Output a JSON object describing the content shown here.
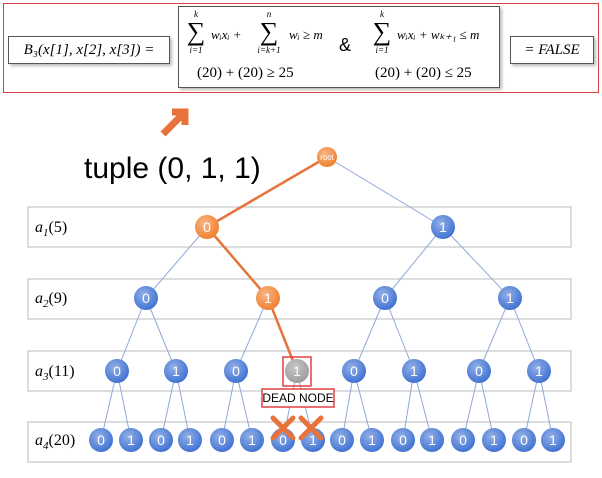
{
  "header": {
    "b3": "B₃(x[1], x[2], x[3]) =",
    "condition1": {
      "sums": [
        {
          "upper": "k",
          "lower": "i=1",
          "term": "wᵢxᵢ +"
        },
        {
          "upper": "n",
          "lower": "i=k+1",
          "term": "wᵢ ≥ m"
        }
      ],
      "check": "(20) + (20) ≥ 25"
    },
    "and": "&",
    "condition2": {
      "sums": [
        {
          "upper": "k",
          "lower": "i=1",
          "term": "wᵢxᵢ + wₖ₊₁ ≤ m"
        }
      ],
      "check": "(20) + (20) ≤ 25"
    },
    "result": "= FALSE"
  },
  "tuple": "tuple (0, 1, 1)",
  "tree": {
    "root": "root",
    "dead_label": "DEAD NODE",
    "levels": [
      {
        "name": "a",
        "sub": "1",
        "weight": "(5)",
        "nodes": [
          "0",
          "1"
        ],
        "colors": [
          "#f07c28",
          "#3b6fd1"
        ]
      },
      {
        "name": "a",
        "sub": "2",
        "weight": "(9)",
        "nodes": [
          "0",
          "1",
          "0",
          "1"
        ],
        "colors": [
          "#3b6fd1",
          "#f07c28",
          "#3b6fd1",
          "#3b6fd1"
        ]
      },
      {
        "name": "a",
        "sub": "3",
        "weight": "(11)",
        "nodes": [
          "0",
          "1",
          "0",
          "1",
          "0",
          "1",
          "0",
          "1"
        ],
        "colors": [
          "#3b6fd1",
          "#3b6fd1",
          "#3b6fd1",
          "#9a9a9a",
          "#3b6fd1",
          "#3b6fd1",
          "#3b6fd1",
          "#3b6fd1"
        ]
      },
      {
        "name": "a",
        "sub": "4",
        "weight": "(20)",
        "nodes": [
          "0",
          "1",
          "0",
          "1",
          "0",
          "1",
          "0",
          "1",
          "0",
          "1",
          "0",
          "1",
          "0",
          "1",
          "0",
          "1"
        ],
        "colors": [
          "#3b6fd1",
          "#3b6fd1",
          "#3b6fd1",
          "#3b6fd1",
          "#3b6fd1",
          "#3b6fd1",
          "#3b6fd1",
          "#3b6fd1",
          "#3b6fd1",
          "#3b6fd1",
          "#3b6fd1",
          "#3b6fd1",
          "#3b6fd1",
          "#3b6fd1",
          "#3b6fd1",
          "#3b6fd1"
        ]
      }
    ]
  }
}
